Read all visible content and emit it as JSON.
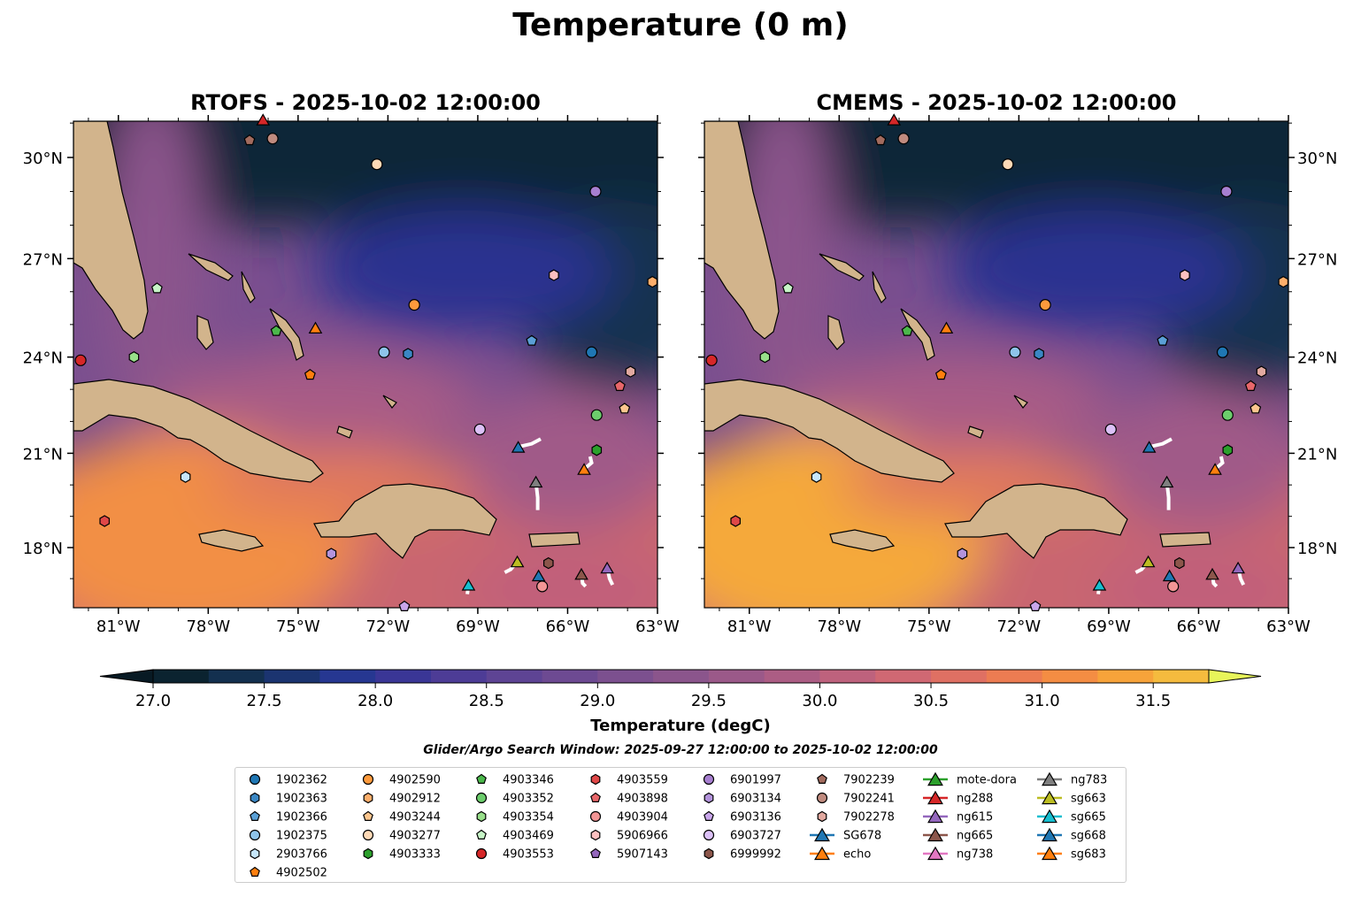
{
  "title": "Temperature (0 m)",
  "panels": [
    {
      "title": "RTOFS - 2025-10-02 12:00:00"
    },
    {
      "title": "CMEMS - 2025-10-02 12:00:00"
    }
  ],
  "colorbar": {
    "label": "Temperature (degC)",
    "min": 27.0,
    "max": 31.75,
    "step": 0.25,
    "ticks": [
      "27.0",
      "27.5",
      "28.0",
      "28.5",
      "29.0",
      "29.5",
      "30.0",
      "30.5",
      "31.0",
      "31.5"
    ],
    "colors": [
      "#0b2330",
      "#13304f",
      "#1b3470",
      "#263791",
      "#3a3696",
      "#4d3c96",
      "#5e4494",
      "#6d4a92",
      "#7c508f",
      "#8b558c",
      "#9b5989",
      "#ac5d84",
      "#be627d",
      "#d06873",
      "#df7063",
      "#ec7c52",
      "#f48d43",
      "#f7a33a",
      "#f5bb3e",
      "#f0d24b"
    ],
    "under": "#081a24",
    "over": "#e8f55a"
  },
  "window": "Glider/Argo Search Window: 2025-09-27 12:00:00 to 2025-10-02 12:00:00",
  "chart_data": {
    "type": "map",
    "lon_range": [
      -82.5,
      -63
    ],
    "lat_range": [
      16.1,
      31.1
    ],
    "lon_ticks": [
      {
        "v": -81,
        "t": "81°W"
      },
      {
        "v": -78,
        "t": "78°W"
      },
      {
        "v": -75,
        "t": "75°W"
      },
      {
        "v": -72,
        "t": "72°W"
      },
      {
        "v": -69,
        "t": "69°W"
      },
      {
        "v": -66,
        "t": "66°W"
      },
      {
        "v": -63,
        "t": "63°W"
      }
    ],
    "lat_ticks": [
      {
        "v": 30,
        "t": "30°N"
      },
      {
        "v": 27,
        "t": "27°N"
      },
      {
        "v": 24,
        "t": "24°N"
      },
      {
        "v": 21,
        "t": "21°N"
      },
      {
        "v": 18,
        "t": "18°N"
      }
    ],
    "platforms": [
      {
        "id": "1902362",
        "shape": "circle",
        "color": "#1f77b4",
        "lon": -65.2,
        "lat": 24.15
      },
      {
        "id": "1902363",
        "shape": "hexagon",
        "color": "#3a87c4",
        "lon": -71.33,
        "lat": 24.1
      },
      {
        "id": "1902366",
        "shape": "pentagon",
        "color": "#5aa0d6",
        "lon": -67.2,
        "lat": 24.5
      },
      {
        "id": "1902375",
        "shape": "circle",
        "color": "#8ec4ea",
        "lon": -72.13,
        "lat": 24.15
      },
      {
        "id": "2903766",
        "shape": "hexagon",
        "color": "#c6e6fb",
        "lon": -78.76,
        "lat": 20.25
      },
      {
        "id": "4902502",
        "shape": "pentagon",
        "color": "#ff7f0e",
        "lon": -74.6,
        "lat": 23.45
      },
      {
        "id": "4902590",
        "shape": "circle",
        "color": "#fd9a3c",
        "lon": -71.12,
        "lat": 25.6
      },
      {
        "id": "4902912",
        "shape": "hexagon",
        "color": "#fdae6b",
        "lon": -63.17,
        "lat": 26.3
      },
      {
        "id": "4903244",
        "shape": "pentagon",
        "color": "#fdc68e",
        "lon": -64.1,
        "lat": 22.4
      },
      {
        "id": "4903277",
        "shape": "circle",
        "color": "#fdd9b6",
        "lon": -72.37,
        "lat": 29.8
      },
      {
        "id": "4903333",
        "shape": "hexagon",
        "color": "#2ca02c",
        "lon": -65.03,
        "lat": 21.1
      },
      {
        "id": "4903346",
        "shape": "pentagon",
        "color": "#4bb84b",
        "lon": -75.73,
        "lat": 24.8
      },
      {
        "id": "4903352",
        "shape": "circle",
        "color": "#6ccd6c",
        "lon": -65.03,
        "lat": 22.2
      },
      {
        "id": "4903354",
        "shape": "hexagon",
        "color": "#98df8a",
        "lon": -80.48,
        "lat": 24.0
      },
      {
        "id": "4903469",
        "shape": "pentagon",
        "color": "#c7f5c7",
        "lon": -79.71,
        "lat": 26.1
      },
      {
        "id": "4903553",
        "shape": "circle",
        "color": "#d62728",
        "lon": -82.26,
        "lat": 23.9
      },
      {
        "id": "4903559",
        "shape": "hexagon",
        "color": "#e04848",
        "lon": -81.46,
        "lat": 18.85
      },
      {
        "id": "4903898",
        "shape": "pentagon",
        "color": "#e8676a",
        "lon": -64.26,
        "lat": 23.1
      },
      {
        "id": "4903904",
        "shape": "circle",
        "color": "#f29595",
        "lon": -66.85,
        "lat": 16.75
      },
      {
        "id": "5906966",
        "shape": "hexagon",
        "color": "#fcc0c0",
        "lon": -66.46,
        "lat": 26.5
      },
      {
        "id": "5907143",
        "shape": "pentagon",
        "color": "#9467bd",
        "lon": null,
        "lat": null
      },
      {
        "id": "6901997",
        "shape": "circle",
        "color": "#a77fd0",
        "lon": -65.07,
        "lat": 29.0
      },
      {
        "id": "6903134",
        "shape": "hexagon",
        "color": "#b393dc",
        "lon": -73.89,
        "lat": 17.8
      },
      {
        "id": "6903136",
        "shape": "pentagon",
        "color": "#c9a6eb",
        "lon": -71.45,
        "lat": 16.1
      },
      {
        "id": "6903727",
        "shape": "circle",
        "color": "#dcc1f7",
        "lon": -68.93,
        "lat": 21.75
      },
      {
        "id": "6999992",
        "shape": "hexagon",
        "color": "#8c564b",
        "lon": -66.64,
        "lat": 17.5
      },
      {
        "id": "7902239",
        "shape": "pentagon",
        "color": "#a26b5e",
        "lon": -76.62,
        "lat": 30.5
      },
      {
        "id": "7902241",
        "shape": "circle",
        "color": "#c08b7f",
        "lon": -75.85,
        "lat": 30.55
      },
      {
        "id": "7902278",
        "shape": "hexagon",
        "color": "#e2a9a0",
        "lon": -63.9,
        "lat": 23.55
      },
      {
        "id": "SG678",
        "shape": "triangle",
        "color": "#1f77b4",
        "lon": -67.65,
        "lat": 21.2,
        "track": [
          [
            -67.65,
            21.2
          ],
          [
            -67.2,
            21.3
          ],
          [
            -66.9,
            21.45
          ]
        ]
      },
      {
        "id": "echo",
        "shape": "triangle",
        "color": "#ff7f0e",
        "lon": -74.42,
        "lat": 24.9
      },
      {
        "id": "mote-dora",
        "shape": "triangle",
        "color": "#2ca02c",
        "lon": null,
        "lat": null
      },
      {
        "id": "ng288",
        "shape": "triangle",
        "color": "#d62728",
        "lon": -76.17,
        "lat": 31.1
      },
      {
        "id": "ng615",
        "shape": "triangle",
        "color": "#9467bd",
        "lon": -64.68,
        "lat": 17.35,
        "track": [
          [
            -64.68,
            17.35
          ],
          [
            -64.6,
            17.0
          ],
          [
            -64.5,
            16.8
          ]
        ]
      },
      {
        "id": "ng665",
        "shape": "triangle",
        "color": "#8c564b",
        "lon": -65.54,
        "lat": 17.15,
        "track": [
          [
            -65.54,
            17.15
          ],
          [
            -65.5,
            16.85
          ],
          [
            -65.4,
            16.75
          ]
        ]
      },
      {
        "id": "ng738",
        "shape": "triangle",
        "color": "#e377c2",
        "lon": null,
        "lat": null
      },
      {
        "id": "ng783",
        "shape": "triangle",
        "color": "#7f7f7f",
        "lon": -67.06,
        "lat": 20.1,
        "track": [
          [
            -67.06,
            20.1
          ],
          [
            -67.0,
            19.6
          ],
          [
            -67.0,
            19.2
          ]
        ]
      },
      {
        "id": "sg663",
        "shape": "triangle",
        "color": "#bcbd22",
        "lon": -67.68,
        "lat": 17.55,
        "track": [
          [
            -67.68,
            17.55
          ],
          [
            -67.9,
            17.3
          ],
          [
            -68.1,
            17.2
          ]
        ]
      },
      {
        "id": "sg665",
        "shape": "triangle",
        "color": "#17becf",
        "lon": -69.31,
        "lat": 16.8,
        "track": [
          [
            -69.31,
            16.8
          ],
          [
            -69.35,
            16.5
          ]
        ]
      },
      {
        "id": "sg668",
        "shape": "triangle",
        "color": "#1f77b4",
        "lon": -66.97,
        "lat": 17.1
      },
      {
        "id": "sg683",
        "shape": "triangle",
        "color": "#ff7f0e",
        "lon": -65.45,
        "lat": 20.5,
        "track": [
          [
            -65.45,
            20.5
          ],
          [
            -65.2,
            20.7
          ],
          [
            -65.25,
            20.9
          ]
        ]
      }
    ]
  }
}
